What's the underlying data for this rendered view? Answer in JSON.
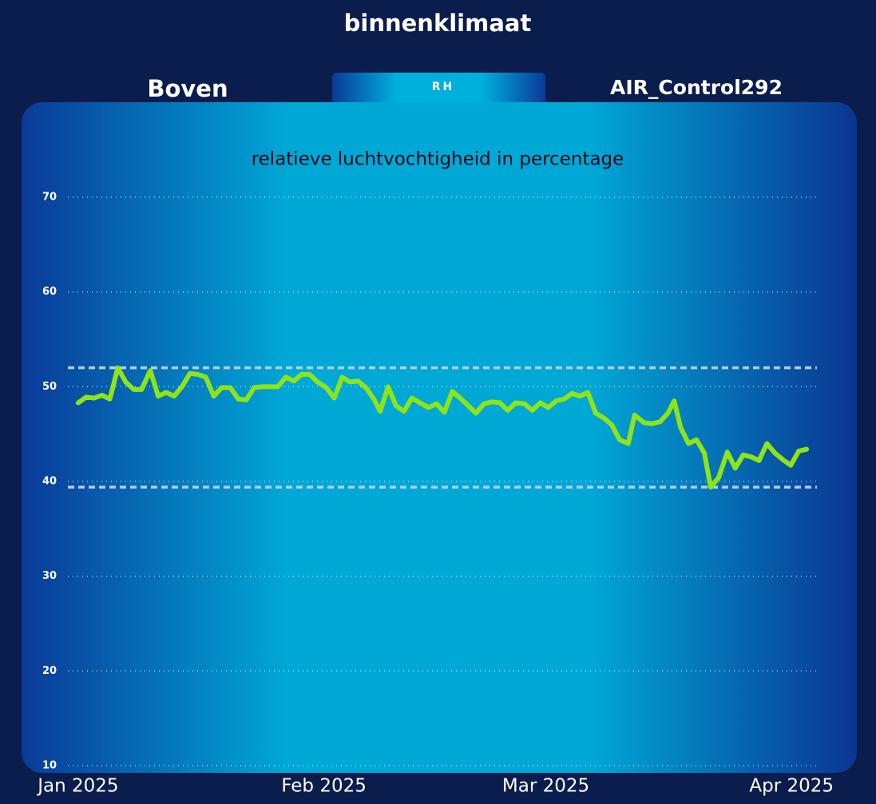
{
  "header": {
    "title": "binnenklimaat",
    "location": "Boven",
    "tab": "RH",
    "device": "AIR_Control292"
  },
  "chart_data": {
    "type": "line",
    "title": "relatieve luchtvochtigheid in percentage",
    "x": [
      0,
      1,
      2,
      3,
      4,
      5,
      6,
      7,
      8,
      9.1,
      10.1,
      11.1,
      12.1,
      13.1,
      14.1,
      15.1,
      16.1,
      17.1,
      18.1,
      19.2,
      20.2,
      21.2,
      22.2,
      23.2,
      24.2,
      25.2,
      26.2,
      27.2,
      28.2,
      29.2,
      30.2,
      31.3,
      32.3,
      33.3,
      34.3,
      35.3,
      36.3,
      37.3,
      38.1,
      39.1,
      40.1,
      41.1,
      42.1,
      43.1,
      44.2,
      45.2,
      46.2,
      47.2,
      48.2,
      49.2,
      50.2,
      51.2,
      52.2,
      53.2,
      54.2,
      55.2,
      56.3,
      57.3,
      58.3,
      59.3,
      60.3,
      61.3,
      62.3,
      63.3,
      64.3,
      65.3,
      66.3,
      67.3,
      68.3,
      69.4,
      70.2,
      71.4,
      72.4,
      73.4,
      74.4,
      75.2,
      76,
      77,
      78,
      79,
      79.8,
      80.8,
      81.9,
      82.9,
      83.9,
      84.9,
      85.9,
      86.9,
      87.9,
      88.9,
      89.9,
      90.9,
      91.9
    ],
    "values": [
      48.3,
      48.9,
      48.8,
      49.1,
      48.7,
      52.0,
      50.5,
      49.7,
      49.7,
      51.7,
      49.0,
      49.4,
      49.0,
      50.0,
      51.4,
      51.3,
      51.0,
      49.0,
      49.9,
      49.9,
      48.7,
      48.6,
      49.9,
      50.0,
      50.0,
      50.0,
      51.0,
      50.6,
      51.3,
      51.3,
      50.5,
      49.9,
      48.8,
      51.0,
      50.5,
      50.6,
      49.9,
      48.7,
      47.4,
      50.0,
      48.0,
      47.4,
      48.8,
      48.3,
      47.8,
      48.2,
      47.3,
      49.5,
      48.8,
      48.0,
      47.2,
      48.2,
      48.4,
      48.3,
      47.5,
      48.3,
      48.2,
      47.5,
      48.3,
      47.8,
      48.5,
      48.7,
      49.3,
      49.0,
      49.4,
      47.2,
      46.7,
      46.0,
      44.4,
      44.0,
      47.0,
      46.2,
      46.1,
      46.3,
      47.2,
      48.5,
      45.7,
      44.0,
      44.4,
      43.0,
      39.4,
      40.4,
      43.1,
      41.4,
      42.8,
      42.6,
      42.2,
      44.0,
      43.0,
      42.3,
      41.7,
      43.2,
      43.4
    ],
    "color": "#8ee418",
    "xlim": [
      -1.3,
      93.2
    ],
    "xticks": [
      {
        "value": 0,
        "label": "Jan 2025"
      },
      {
        "value": 31,
        "label": "Feb 2025"
      },
      {
        "value": 59,
        "label": "Mar 2025"
      },
      {
        "value": 90,
        "label": "Apr 2025"
      }
    ],
    "ylim": [
      10,
      70
    ],
    "yticks": [
      10,
      20,
      30,
      40,
      50,
      60,
      70
    ],
    "grid": true,
    "reference_lines": [
      52,
      39.4
    ]
  }
}
